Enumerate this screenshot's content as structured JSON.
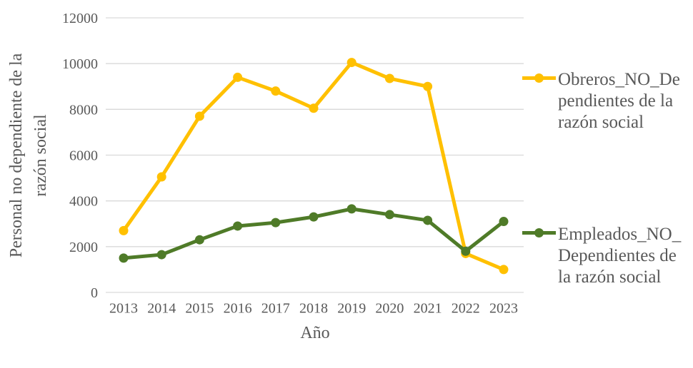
{
  "chart_data": {
    "type": "line",
    "title": "",
    "xlabel": "Año",
    "ylabel": "Personal no dependiente de la razón social",
    "ylabel_lines": [
      "Personal no dependiente de la",
      "razón social"
    ],
    "categories": [
      "2013",
      "2014",
      "2015",
      "2016",
      "2017",
      "2018",
      "2019",
      "2020",
      "2021",
      "2022",
      "2023"
    ],
    "yticks": [
      0,
      2000,
      4000,
      6000,
      8000,
      10000,
      12000
    ],
    "ylim": [
      0,
      12000
    ],
    "grid": true,
    "legend_position": "right",
    "series": [
      {
        "name": "Obreros_NO_Dependientes de la razón social",
        "legend_lines": [
          "Obreros_NO_De",
          "pendientes de la",
          "razón social"
        ],
        "color": "#FFC000",
        "values": [
          2700,
          5050,
          7700,
          9400,
          8800,
          8050,
          10050,
          9350,
          9000,
          1700,
          1000
        ]
      },
      {
        "name": "Empleados_NO_Dependientes de la razón social",
        "legend_lines": [
          "Empleados_NO_",
          "Dependientes de",
          "la razón social"
        ],
        "color": "#4F7B28",
        "values": [
          1500,
          1650,
          2300,
          2900,
          3050,
          3300,
          3650,
          3400,
          3150,
          1800,
          3100
        ]
      }
    ],
    "styles": {
      "grid_color": "#D9D9D9",
      "text_color": "#595959",
      "background": "#FFFFFF"
    }
  }
}
